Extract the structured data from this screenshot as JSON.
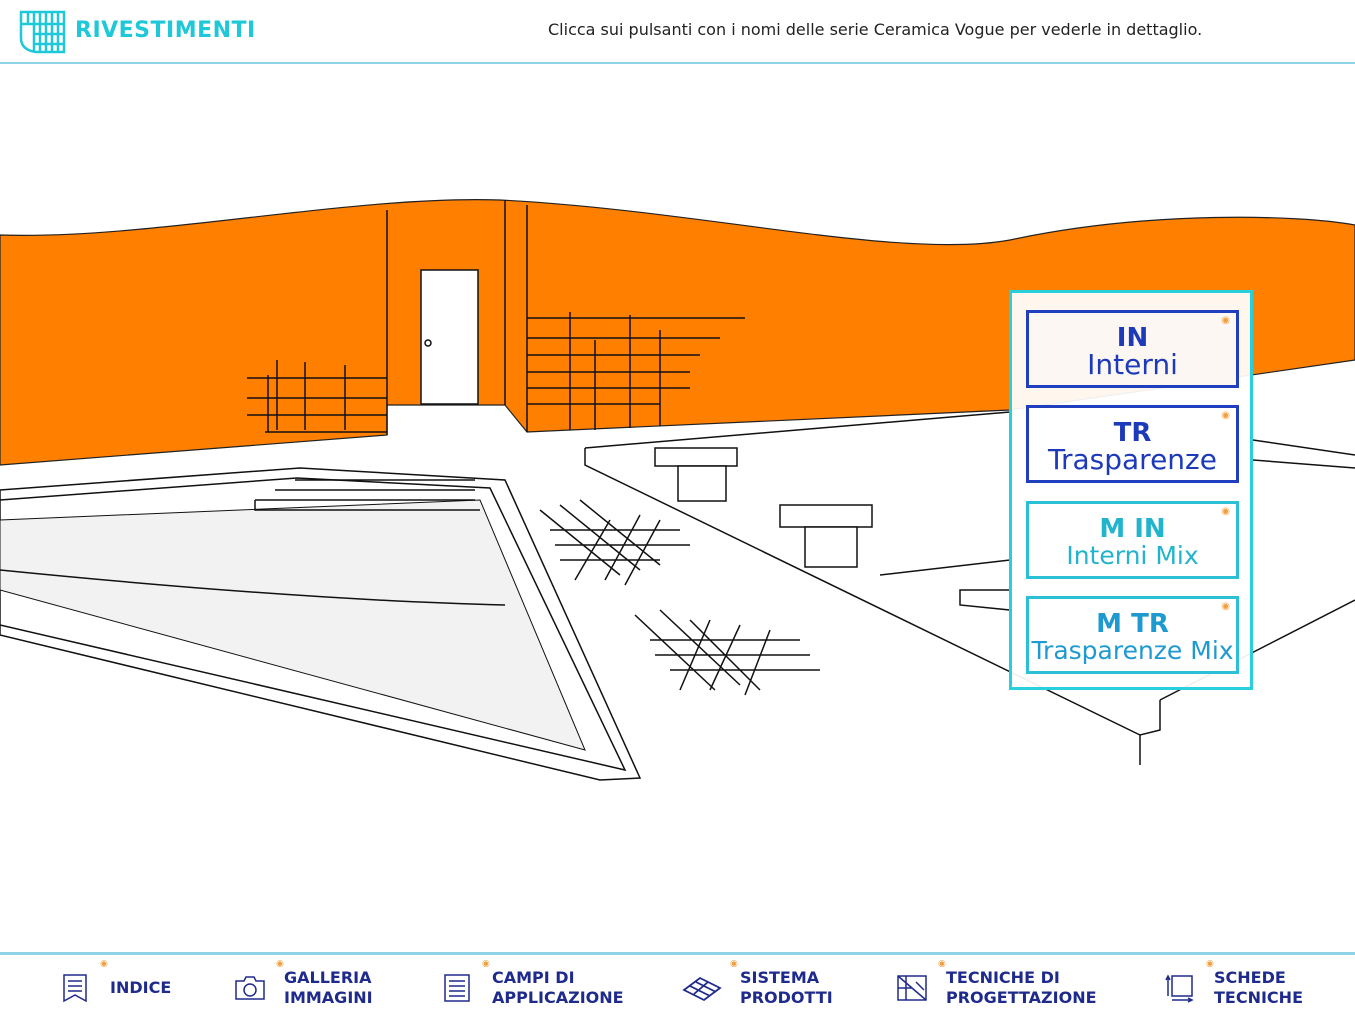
{
  "header": {
    "title": "RIVESTIMENTI",
    "hint": "Clicca sui pulsanti con i nomi delle serie Ceramica Vogue per vederle in dettaglio."
  },
  "colors": {
    "accent": "#1fc8d8",
    "wall": "#ff7f00",
    "navy": "#1e2a8c"
  },
  "series": [
    {
      "code": "IN",
      "name": "Interni"
    },
    {
      "code": "TR",
      "name": "Trasparenze"
    },
    {
      "code": "M IN",
      "name": "Interni Mix"
    },
    {
      "code": "M TR",
      "name": "Trasparenze Mix"
    }
  ],
  "footer": {
    "items": [
      {
        "label": "INDICE",
        "icon": "bookmark-list-icon"
      },
      {
        "label": "GALLERIA\nIMMAGINI",
        "icon": "camera-icon"
      },
      {
        "label": "CAMPI DI\nAPPLICAZIONE",
        "icon": "checklist-icon"
      },
      {
        "label": "SISTEMA\nPRODOTTI",
        "icon": "tiles-icon"
      },
      {
        "label": "TECNICHE DI\nPROGETTAZIONE",
        "icon": "blueprint-icon"
      },
      {
        "label": "SCHEDE\nTECNICHE",
        "icon": "measure-icon"
      }
    ]
  }
}
